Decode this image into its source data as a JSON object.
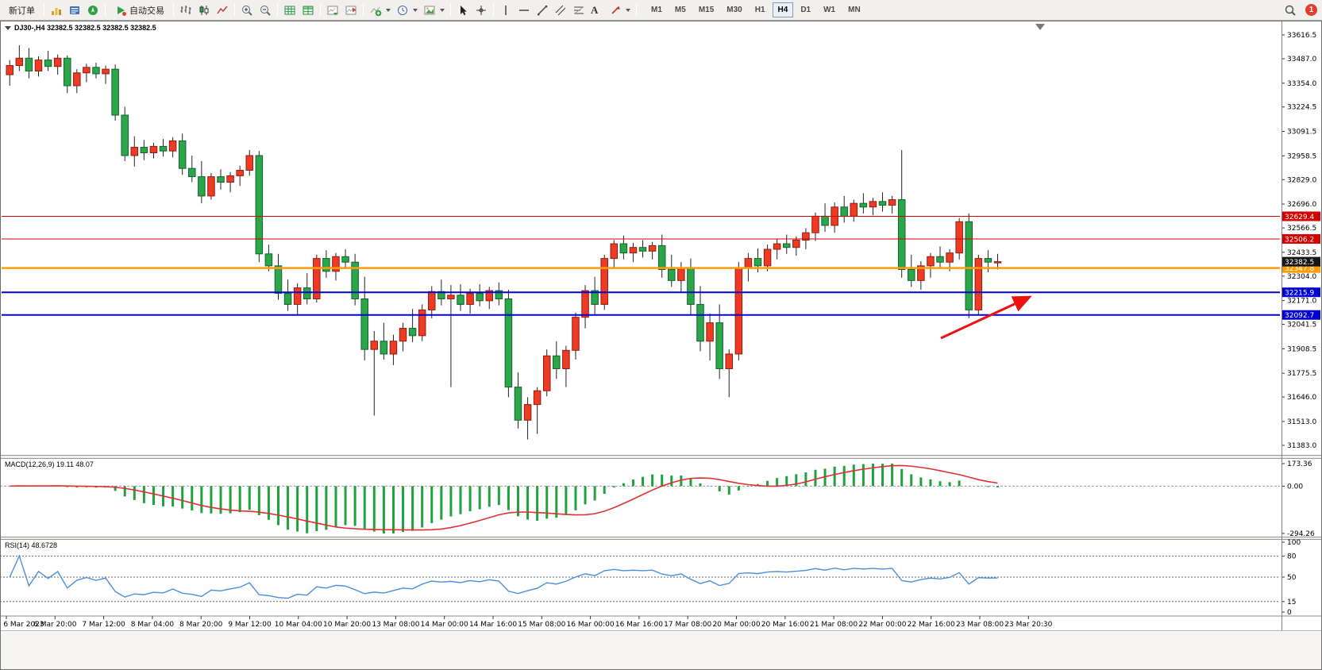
{
  "toolbar": {
    "new_order_label": "新订单",
    "auto_trading_label": "自动交易",
    "text_tool_glyph": "A",
    "timeframes": [
      "M1",
      "M5",
      "M15",
      "M30",
      "H1",
      "H4",
      "D1",
      "W1",
      "MN"
    ],
    "active_timeframe": "H4",
    "notification_badge": "1"
  },
  "chart_data": {
    "type": "candlestick",
    "symbol": "DJ30-",
    "timeframe": "H4",
    "title_line": "DJ30-,H4  32382.5 32382.5 32382.5 32382.5",
    "up_color": "#ef3b24",
    "down_color": "#2aa74a",
    "price_axis": [
      33616.5,
      33487.0,
      33354.0,
      33224.5,
      33091.5,
      32958.5,
      32829.0,
      32696.0,
      32566.5,
      32433.5,
      32304.0,
      32171.0,
      32041.5,
      31908.5,
      31775.5,
      31646.0,
      31513.0,
      31383.0
    ],
    "time_axis": [
      "6 Mar 2023",
      "6 Mar 20:00",
      "7 Mar 12:00",
      "8 Mar 04:00",
      "8 Mar 20:00",
      "9 Mar 12:00",
      "10 Mar 04:00",
      "10 Mar 20:00",
      "13 Mar 08:00",
      "14 Mar 00:00",
      "14 Mar 16:00",
      "15 Mar 08:00",
      "16 Mar 00:00",
      "16 Mar 16:00",
      "17 Mar 08:00",
      "20 Mar 00:00",
      "20 Mar 16:00",
      "21 Mar 08:00",
      "22 Mar 00:00",
      "22 Mar 16:00",
      "23 Mar 08:00",
      "23 Mar 20:30"
    ],
    "candles": [
      [
        33400,
        33480,
        33340,
        33450
      ],
      [
        33450,
        33560,
        33420,
        33490
      ],
      [
        33490,
        33545,
        33380,
        33420
      ],
      [
        33420,
        33500,
        33390,
        33480
      ],
      [
        33480,
        33530,
        33420,
        33445
      ],
      [
        33445,
        33510,
        33400,
        33490
      ],
      [
        33490,
        33505,
        33300,
        33340
      ],
      [
        33340,
        33430,
        33300,
        33410
      ],
      [
        33410,
        33460,
        33360,
        33440
      ],
      [
        33440,
        33465,
        33380,
        33405
      ],
      [
        33405,
        33450,
        33350,
        33430
      ],
      [
        33430,
        33455,
        33150,
        33180
      ],
      [
        33180,
        33225,
        32930,
        32960
      ],
      [
        32960,
        33065,
        32900,
        33005
      ],
      [
        33005,
        33045,
        32935,
        32975
      ],
      [
        32975,
        33030,
        32945,
        33010
      ],
      [
        33010,
        33050,
        32955,
        32985
      ],
      [
        32985,
        33060,
        32950,
        33040
      ],
      [
        33040,
        33080,
        32855,
        32890
      ],
      [
        32890,
        32960,
        32815,
        32845
      ],
      [
        32845,
        32930,
        32700,
        32740
      ],
      [
        32740,
        32865,
        32720,
        32845
      ],
      [
        32845,
        32885,
        32775,
        32815
      ],
      [
        32815,
        32870,
        32760,
        32850
      ],
      [
        32850,
        32905,
        32795,
        32880
      ],
      [
        32880,
        32990,
        32850,
        32960
      ],
      [
        32960,
        32985,
        32380,
        32425
      ],
      [
        32425,
        32475,
        32330,
        32360
      ],
      [
        32360,
        32425,
        32175,
        32210
      ],
      [
        32210,
        32285,
        32115,
        32150
      ],
      [
        32150,
        32265,
        32095,
        32240
      ],
      [
        32240,
        32320,
        32150,
        32180
      ],
      [
        32180,
        32420,
        32160,
        32400
      ],
      [
        32400,
        32445,
        32295,
        32330
      ],
      [
        32330,
        32430,
        32280,
        32410
      ],
      [
        32410,
        32450,
        32345,
        32380
      ],
      [
        32380,
        32425,
        32145,
        32180
      ],
      [
        32180,
        32300,
        31845,
        31905
      ],
      [
        31905,
        32005,
        31545,
        31950
      ],
      [
        31950,
        32050,
        31850,
        31880
      ],
      [
        31880,
        31985,
        31820,
        31950
      ],
      [
        31950,
        32050,
        31895,
        32020
      ],
      [
        32020,
        32125,
        31945,
        31980
      ],
      [
        31980,
        32150,
        31950,
        32120
      ],
      [
        32120,
        32250,
        32075,
        32220
      ],
      [
        32220,
        32285,
        32145,
        32180
      ],
      [
        32180,
        32255,
        31700,
        32200
      ],
      [
        32200,
        32260,
        32115,
        32150
      ],
      [
        32150,
        32235,
        32100,
        32210
      ],
      [
        32210,
        32260,
        32140,
        32170
      ],
      [
        32170,
        32245,
        32125,
        32225
      ],
      [
        32225,
        32270,
        32145,
        32180
      ],
      [
        32180,
        32230,
        31645,
        31700
      ],
      [
        31700,
        31780,
        31475,
        31520
      ],
      [
        31520,
        31645,
        31415,
        31605
      ],
      [
        31605,
        31700,
        31445,
        31680
      ],
      [
        31680,
        31905,
        31650,
        31870
      ],
      [
        31870,
        31950,
        31745,
        31800
      ],
      [
        31800,
        31925,
        31700,
        31900
      ],
      [
        31900,
        32105,
        31850,
        32080
      ],
      [
        32080,
        32255,
        32020,
        32225
      ],
      [
        32225,
        32300,
        32095,
        32150
      ],
      [
        32150,
        32420,
        32120,
        32400
      ],
      [
        32400,
        32500,
        32345,
        32480
      ],
      [
        32480,
        32525,
        32395,
        32430
      ],
      [
        32430,
        32485,
        32380,
        32460
      ],
      [
        32460,
        32500,
        32405,
        32440
      ],
      [
        32440,
        32490,
        32395,
        32470
      ],
      [
        32470,
        32530,
        32295,
        32340
      ],
      [
        32340,
        32420,
        32245,
        32280
      ],
      [
        32280,
        32380,
        32215,
        32350
      ],
      [
        32350,
        32400,
        32095,
        32150
      ],
      [
        32150,
        32250,
        31895,
        31950
      ],
      [
        31950,
        32100,
        31845,
        32050
      ],
      [
        32050,
        32150,
        31745,
        31800
      ],
      [
        31800,
        31905,
        31645,
        31880
      ],
      [
        31880,
        32380,
        31845,
        32350
      ],
      [
        32350,
        32430,
        32275,
        32400
      ],
      [
        32400,
        32455,
        32325,
        32360
      ],
      [
        32360,
        32475,
        32330,
        32450
      ],
      [
        32450,
        32505,
        32395,
        32480
      ],
      [
        32480,
        32530,
        32425,
        32460
      ],
      [
        32460,
        32520,
        32415,
        32500
      ],
      [
        32500,
        32565,
        32450,
        32540
      ],
      [
        32540,
        32650,
        32495,
        32630
      ],
      [
        32630,
        32700,
        32545,
        32580
      ],
      [
        32580,
        32705,
        32540,
        32680
      ],
      [
        32680,
        32740,
        32595,
        32630
      ],
      [
        32630,
        32720,
        32600,
        32700
      ],
      [
        32700,
        32755,
        32645,
        32680
      ],
      [
        32680,
        32730,
        32635,
        32710
      ],
      [
        32710,
        32760,
        32655,
        32690
      ],
      [
        32690,
        32740,
        32645,
        32720
      ],
      [
        32720,
        32990,
        32295,
        32340
      ],
      [
        32340,
        32420,
        32245,
        32280
      ],
      [
        32280,
        32385,
        32230,
        32360
      ],
      [
        32360,
        32430,
        32295,
        32410
      ],
      [
        32410,
        32465,
        32345,
        32380
      ],
      [
        32380,
        32450,
        32330,
        32430
      ],
      [
        32430,
        32620,
        32395,
        32600
      ],
      [
        32600,
        32645,
        32075,
        32120
      ],
      [
        32120,
        32420,
        32095,
        32400
      ],
      [
        32400,
        32445,
        32325,
        32380
      ],
      [
        32380,
        32425,
        32340,
        32382.5
      ]
    ],
    "hlines": [
      {
        "price": 32629.4,
        "label": "32629.4",
        "color": "#d40000",
        "width": 1
      },
      {
        "price": 32506.2,
        "label": "32506.2",
        "color": "#d40000",
        "width": 1
      },
      {
        "price": 32347.8,
        "label": "32347.8",
        "color": "#ff9c00",
        "width": 2.5
      },
      {
        "price": 32215.9,
        "label": "32215.9",
        "color": "#0000d4",
        "width": 2
      },
      {
        "price": 32092.7,
        "label": "32092.7",
        "color": "#0000d4",
        "width": 2
      }
    ],
    "current_price": {
      "value": 32382.5,
      "label": "32382.5",
      "badge_color": "#161616"
    },
    "arrow_annotation": {
      "tail": [
        1185,
        400
      ],
      "tip": [
        1297,
        348
      ],
      "color": "#ee1111"
    },
    "indicators": {
      "macd": {
        "label": "MACD(12,26,9) 19.11 48.07",
        "fast": 12,
        "slow": 26,
        "signal": 9,
        "scale_max": "173.36",
        "scale_zero": "0.00",
        "scale_min": "-294.26",
        "histogram_color": "#1fa23d",
        "signal_color": "#e03030"
      },
      "rsi": {
        "label": "RSI(14) 48.6728",
        "period": 14,
        "levels": [
          100,
          80,
          50,
          15,
          0
        ],
        "line_color": "#4a90d9"
      }
    }
  }
}
